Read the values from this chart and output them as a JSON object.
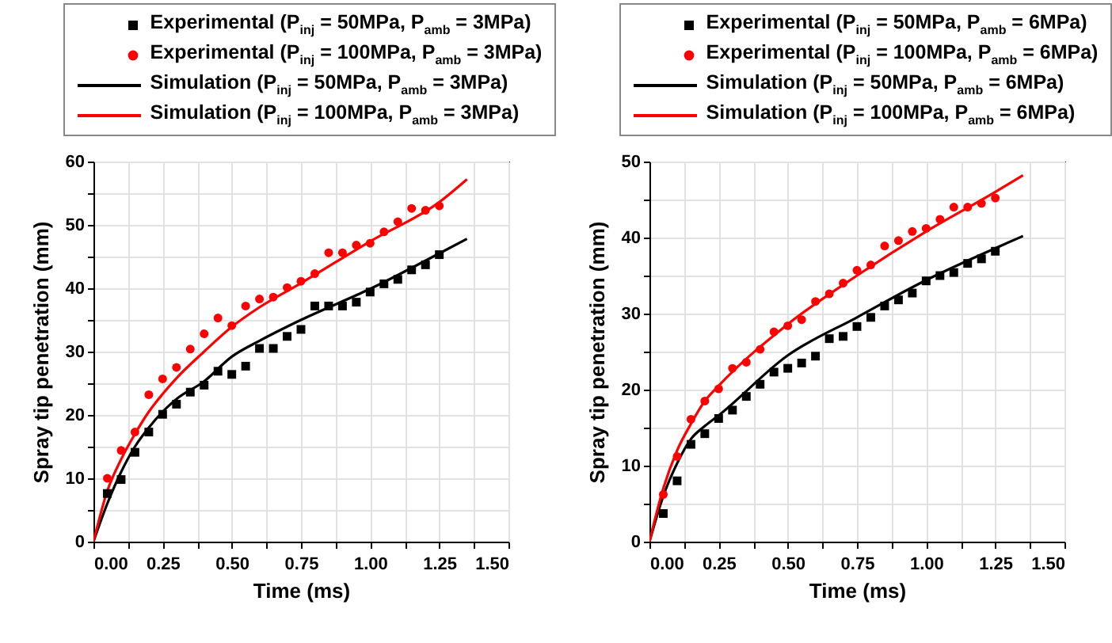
{
  "chart_data": [
    {
      "type": "scatter",
      "xlabel": "Time (ms)",
      "ylabel": "Spray tip penetration (mm)",
      "legend": "top",
      "grid": true,
      "xlim": [
        0,
        1.5
      ],
      "ylim": [
        0,
        60
      ],
      "xticks": [
        {
          "value": 0,
          "label": "0.00"
        },
        {
          "value": 0.125,
          "label": null
        },
        {
          "value": 0.25,
          "label": "0.25"
        },
        {
          "value": 0.375,
          "label": null
        },
        {
          "value": 0.5,
          "label": "0.50"
        },
        {
          "value": 0.625,
          "label": null
        },
        {
          "value": 0.75,
          "label": "0.75"
        },
        {
          "value": 0.875,
          "label": null
        },
        {
          "value": 1,
          "label": "1.00"
        },
        {
          "value": 1.125,
          "label": null
        },
        {
          "value": 1.25,
          "label": "1.25"
        },
        {
          "value": 1.375,
          "label": null
        },
        {
          "value": 1.5,
          "label": "1.50"
        }
      ],
      "yticks": [
        0,
        {
          "value": 5,
          "label": null
        },
        10,
        {
          "value": 15,
          "label": null
        },
        20,
        {
          "value": 25,
          "label": null
        },
        30,
        {
          "value": 35,
          "label": null
        },
        40,
        {
          "value": 45,
          "label": null
        },
        50,
        {
          "value": 55,
          "label": null
        },
        60
      ],
      "x": [
        0.05,
        0.1,
        0.15,
        0.2,
        0.25,
        0.3,
        0.35,
        0.4,
        0.45,
        0.5,
        0.55,
        0.6,
        0.65,
        0.7,
        0.75,
        0.8,
        0.85,
        0.9,
        0.95,
        1.0,
        1.05,
        1.1,
        1.15,
        1.2,
        1.25
      ],
      "series": [
        {
          "name": "Experimental (P$_{inj}$ = 50MPa, P$_{amb}$ = 3MPa)",
          "color": "#000000",
          "marker": "square",
          "values": [
            7.6,
            9.8,
            14.1,
            17.3,
            20.1,
            21.7,
            23.6,
            24.7,
            26.9,
            26.4,
            27.7,
            30.5,
            30.5,
            32.4,
            33.5,
            37.2,
            37.2,
            37.2,
            37.8,
            39.4,
            40.7,
            41.4,
            42.9,
            43.7,
            45.3
          ]
        },
        {
          "name": "Experimental (P$_{inj}$ = 100MPa, P$_{amb}$ = 3MPa)",
          "color": "#ff0000",
          "marker": "circle",
          "values": [
            10.0,
            14.4,
            17.3,
            23.2,
            25.7,
            27.5,
            30.4,
            32.8,
            35.3,
            34.1,
            37.2,
            38.3,
            38.6,
            40.1,
            41.1,
            42.3,
            45.6,
            45.6,
            46.8,
            47.1,
            48.9,
            50.5,
            52.6,
            52.3,
            53.0
          ]
        },
        {
          "name": "Simulation (P$_{inj}$ = 50MPa, P$_{amb}$ = 3MPa)",
          "color": "#000000",
          "type": "line",
          "x": [
            0,
            0.05,
            0.1,
            0.15,
            0.2,
            0.25,
            0.3,
            0.4,
            0.5,
            0.6,
            0.75,
            1.0,
            1.25,
            1.35
          ],
          "values": [
            0,
            6,
            11,
            15,
            18,
            20.5,
            22.5,
            25.3,
            29.2,
            31.7,
            35.0,
            39.9,
            45.5,
            47.8
          ]
        },
        {
          "name": "Simulation (P$_{inj}$ = 100MPa, P$_{amb}$ = 3MPa)",
          "color": "#ff0000",
          "type": "line",
          "x": [
            0,
            0.05,
            0.1,
            0.15,
            0.2,
            0.25,
            0.3,
            0.4,
            0.5,
            0.6,
            0.75,
            1.0,
            1.25,
            1.35
          ],
          "values": [
            0,
            8,
            13,
            17,
            20.5,
            23.3,
            25.8,
            30.0,
            33.9,
            37.0,
            40.8,
            47.4,
            53.6,
            57.2
          ]
        }
      ]
    },
    {
      "type": "scatter",
      "xlabel": "Time (ms)",
      "ylabel": "Spray tip penetration (mm)",
      "legend": "top",
      "grid": true,
      "xlim": [
        0,
        1.5
      ],
      "ylim": [
        0,
        50
      ],
      "xticks": [
        {
          "value": 0,
          "label": "0.00"
        },
        {
          "value": 0.125,
          "label": null
        },
        {
          "value": 0.25,
          "label": "0.25"
        },
        {
          "value": 0.375,
          "label": null
        },
        {
          "value": 0.5,
          "label": "0.50"
        },
        {
          "value": 0.625,
          "label": null
        },
        {
          "value": 0.75,
          "label": "0.75"
        },
        {
          "value": 0.875,
          "label": null
        },
        {
          "value": 1,
          "label": "1.00"
        },
        {
          "value": 1.125,
          "label": null
        },
        {
          "value": 1.25,
          "label": "1.25"
        },
        {
          "value": 1.375,
          "label": null
        },
        {
          "value": 1.5,
          "label": "1.50"
        }
      ],
      "yticks": [
        0,
        {
          "value": 5,
          "label": null
        },
        10,
        {
          "value": 15,
          "label": null
        },
        20,
        {
          "value": 25,
          "label": null
        },
        30,
        {
          "value": 35,
          "label": null
        },
        40,
        {
          "value": 45,
          "label": null
        },
        50
      ],
      "x": [
        0.05,
        0.1,
        0.15,
        0.2,
        0.25,
        0.3,
        0.35,
        0.4,
        0.45,
        0.5,
        0.55,
        0.6,
        0.65,
        0.7,
        0.75,
        0.8,
        0.85,
        0.9,
        0.95,
        1.0,
        1.05,
        1.1,
        1.15,
        1.2,
        1.25
      ],
      "series": [
        {
          "name": "Experimental (P$_{inj}$ = 50MPa, P$_{amb}$ = 6MPa)",
          "color": "#000000",
          "marker": "square",
          "values": [
            3.7,
            8.0,
            12.8,
            14.2,
            16.2,
            17.3,
            19.1,
            20.7,
            22.3,
            22.8,
            23.5,
            24.4,
            26.7,
            27.0,
            28.3,
            29.5,
            31.0,
            31.8,
            32.7,
            34.3,
            35.0,
            35.4,
            36.6,
            37.2,
            38.2
          ]
        },
        {
          "name": "Experimental (P$_{inj}$ = 100MPa, P$_{amb}$ = 6MPa)",
          "color": "#ff0000",
          "marker": "circle",
          "values": [
            6.2,
            11.2,
            16.1,
            18.5,
            20.1,
            22.8,
            23.6,
            25.3,
            27.6,
            28.4,
            29.2,
            31.6,
            32.6,
            34.0,
            35.7,
            36.4,
            38.9,
            39.6,
            40.8,
            41.2,
            42.4,
            44.0,
            44.0,
            44.5,
            45.2
          ]
        },
        {
          "name": "Simulation (P$_{inj}$ = 50MPa, P$_{amb}$ = 6MPa)",
          "color": "#000000",
          "type": "line",
          "x": [
            0,
            0.05,
            0.1,
            0.15,
            0.2,
            0.25,
            0.5,
            0.75,
            1.0,
            1.25,
            1.35
          ],
          "values": [
            0,
            6,
            10.3,
            13.5,
            15.2,
            16.6,
            24.5,
            29.5,
            34.4,
            38.6,
            40.2
          ]
        },
        {
          "name": "Simulation (P$_{inj}$ = 100MPa, P$_{amb}$ = 6MPa)",
          "color": "#ff0000",
          "type": "line",
          "x": [
            0,
            0.05,
            0.1,
            0.15,
            0.2,
            0.25,
            0.5,
            0.75,
            1.0,
            1.25,
            1.35
          ],
          "values": [
            0,
            7,
            12,
            15.5,
            18.5,
            20.5,
            28.6,
            35.0,
            40.8,
            46.0,
            48.2
          ]
        }
      ]
    }
  ]
}
